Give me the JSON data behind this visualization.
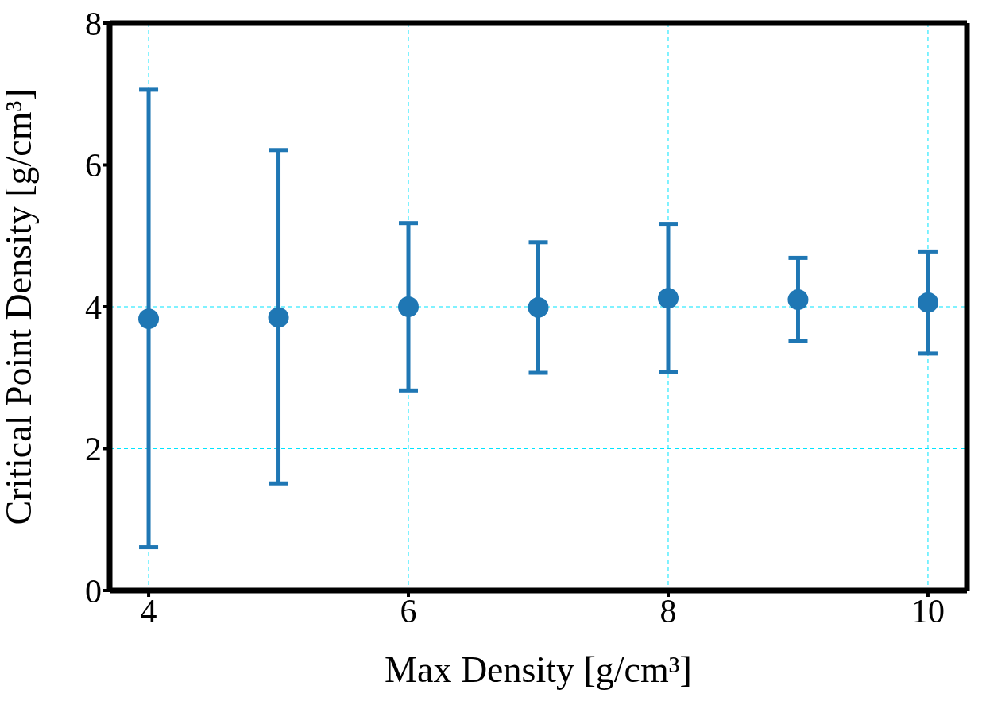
{
  "chart_data": {
    "type": "scatter",
    "xlabel": "Max Density [g/cm³]",
    "ylabel": "Critical Point Density [g/cm³]",
    "x": [
      4,
      5,
      6,
      7,
      8,
      9,
      10
    ],
    "series": [
      {
        "color": "#1f77b4",
        "values": [
          3.83,
          3.85,
          4.0,
          3.99,
          4.12,
          4.1,
          4.06
        ],
        "errors": [
          [
            0.61,
            7.06
          ],
          [
            1.51,
            6.21
          ],
          [
            2.82,
            5.18
          ],
          [
            3.07,
            4.91
          ],
          [
            3.08,
            5.17
          ],
          [
            3.52,
            4.69
          ],
          [
            3.34,
            4.78
          ]
        ]
      }
    ],
    "xlim": [
      3.7,
      10.3
    ],
    "xticks": [
      4,
      6,
      8,
      10
    ],
    "ylim": [
      0,
      8
    ],
    "yticks": [
      0,
      2,
      4,
      6,
      8
    ],
    "grid": true,
    "marker": "circle"
  }
}
